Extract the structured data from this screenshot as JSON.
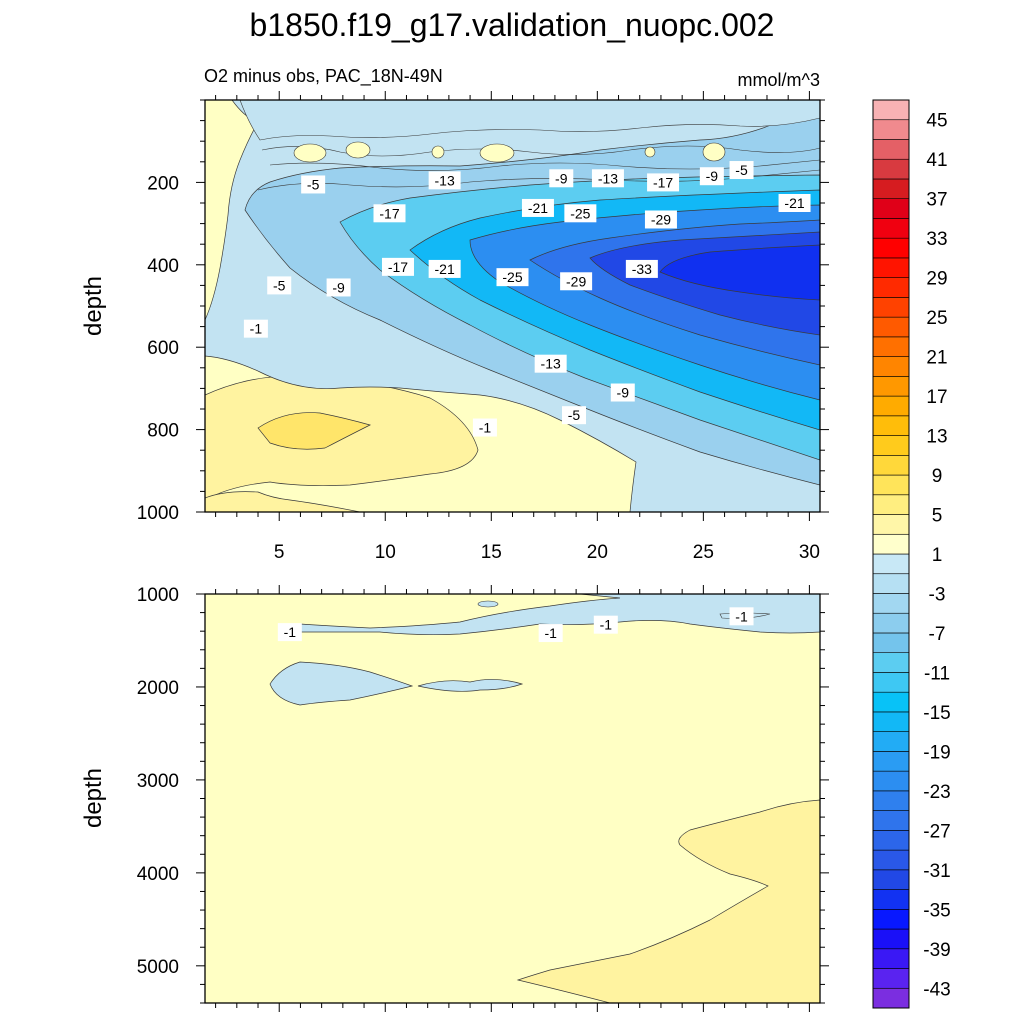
{
  "title": "b1850.f19_g17.validation_nuopc.002",
  "subtitle_left": "O2 minus obs, PAC_18N-49N",
  "subtitle_right": "mmol/m^3",
  "colors": {
    "sea_light": "#c2e3f2",
    "sea_mid": "#9ad0ee",
    "sea_cyan": "#1ec0f5",
    "sea_blue": "#1f6ff0",
    "sea_deep": "#1030f0",
    "sand_light": "#ffffc4",
    "sand_mid": "#fff3a0",
    "sand_yellow": "#ffe56a"
  },
  "chart_data": [
    {
      "type": "contour",
      "panel": "upper",
      "xlabel": "",
      "ylabel": "depth",
      "xlim": [
        1.5,
        30.5
      ],
      "ylim": [
        0,
        1000
      ],
      "y_inverted": true,
      "x_ticks": [
        5,
        10,
        15,
        20,
        25,
        30
      ],
      "x_tick_labels": [
        "5",
        "10",
        "15",
        "20",
        "25",
        "30"
      ],
      "y_ticks": [
        200,
        400,
        600,
        800,
        1000
      ],
      "y_tick_labels": [
        "200",
        "400",
        "600",
        "800",
        "1000"
      ],
      "contour_labels": [
        {
          "text": "-5",
          "x": 6.6,
          "y": 205
        },
        {
          "text": "-13",
          "x": 12.8,
          "y": 195
        },
        {
          "text": "-9",
          "x": 18.3,
          "y": 190
        },
        {
          "text": "-13",
          "x": 20.5,
          "y": 190
        },
        {
          "text": "-17",
          "x": 23.1,
          "y": 200
        },
        {
          "text": "-9",
          "x": 25.4,
          "y": 185
        },
        {
          "text": "-5",
          "x": 26.8,
          "y": 170
        },
        {
          "text": "-21",
          "x": 29.3,
          "y": 250
        },
        {
          "text": "-17",
          "x": 10.2,
          "y": 275
        },
        {
          "text": "-21",
          "x": 17.2,
          "y": 262
        },
        {
          "text": "-25",
          "x": 19.2,
          "y": 275
        },
        {
          "text": "-29",
          "x": 23.0,
          "y": 290
        },
        {
          "text": "-17",
          "x": 10.6,
          "y": 405
        },
        {
          "text": "-21",
          "x": 12.8,
          "y": 410
        },
        {
          "text": "-25",
          "x": 16.0,
          "y": 430
        },
        {
          "text": "-29",
          "x": 19.0,
          "y": 440
        },
        {
          "text": "-33",
          "x": 22.1,
          "y": 410
        },
        {
          "text": "-5",
          "x": 5.0,
          "y": 450
        },
        {
          "text": "-9",
          "x": 7.8,
          "y": 455
        },
        {
          "text": "-1",
          "x": 3.9,
          "y": 555
        },
        {
          "text": "-13",
          "x": 17.8,
          "y": 640
        },
        {
          "text": "-9",
          "x": 21.2,
          "y": 710
        },
        {
          "text": "-5",
          "x": 18.9,
          "y": 765
        },
        {
          "text": "-1",
          "x": 14.7,
          "y": 795
        }
      ]
    },
    {
      "type": "contour",
      "panel": "lower",
      "xlabel": "",
      "ylabel": "depth",
      "xlim": [
        1.5,
        30.5
      ],
      "ylim": [
        1000,
        5400
      ],
      "y_inverted": true,
      "y_ticks": [
        1000,
        2000,
        3000,
        4000,
        5000
      ],
      "y_tick_labels": [
        "1000",
        "2000",
        "3000",
        "4000",
        "5000"
      ],
      "contour_labels": [
        {
          "text": "-1",
          "x": 5.5,
          "y": 1410
        },
        {
          "text": "-1",
          "x": 17.8,
          "y": 1420
        },
        {
          "text": "-1",
          "x": 20.4,
          "y": 1330
        },
        {
          "text": "-1",
          "x": 26.8,
          "y": 1240
        }
      ]
    },
    {
      "type": "colorbar",
      "levels": [
        -45,
        -43,
        -41,
        -39,
        -37,
        -35,
        -33,
        -31,
        -29,
        -27,
        -25,
        -23,
        -21,
        -19,
        -17,
        -15,
        -13,
        -11,
        -9,
        -7,
        -5,
        -3,
        -1,
        1,
        3,
        5,
        7,
        9,
        11,
        13,
        15,
        17,
        19,
        21,
        23,
        25,
        27,
        29,
        31,
        33,
        35,
        37,
        39,
        41,
        43,
        45,
        47
      ],
      "colors": [
        "#7b2ee0",
        "#5a23f0",
        "#3a18f5",
        "#1a10f8",
        "#0818ff",
        "#1232f2",
        "#2148e6",
        "#2a58e8",
        "#2c66ea",
        "#2f74ec",
        "#2f80ee",
        "#2c8ef1",
        "#2a9cf3",
        "#22acf5",
        "#12b8f6",
        "#08c2f7",
        "#3ec8f3",
        "#5ccdf1",
        "#74c4ec",
        "#8ccdee",
        "#a2d7f1",
        "#b6e0f3",
        "#c8e8f6",
        "#ffffcc",
        "#fff6a8",
        "#ffee80",
        "#ffe45a",
        "#ffd83a",
        "#ffcb1c",
        "#ffbd0a",
        "#ffab00",
        "#ff9800",
        "#ff8500",
        "#ff7000",
        "#ff5a00",
        "#ff4200",
        "#ff2a00",
        "#ff1400",
        "#ff0000",
        "#f00010",
        "#e00018",
        "#d61c20",
        "#d83a40",
        "#e46066",
        "#f08a8e",
        "#f8b2b4"
      ],
      "tick_labels": [
        "-43",
        "-39",
        "-35",
        "-31",
        "-27",
        "-23",
        "-19",
        "-15",
        "-11",
        "-7",
        "-3",
        "1",
        "5",
        "9",
        "13",
        "17",
        "21",
        "25",
        "29",
        "33",
        "37",
        "41",
        "45"
      ]
    }
  ]
}
